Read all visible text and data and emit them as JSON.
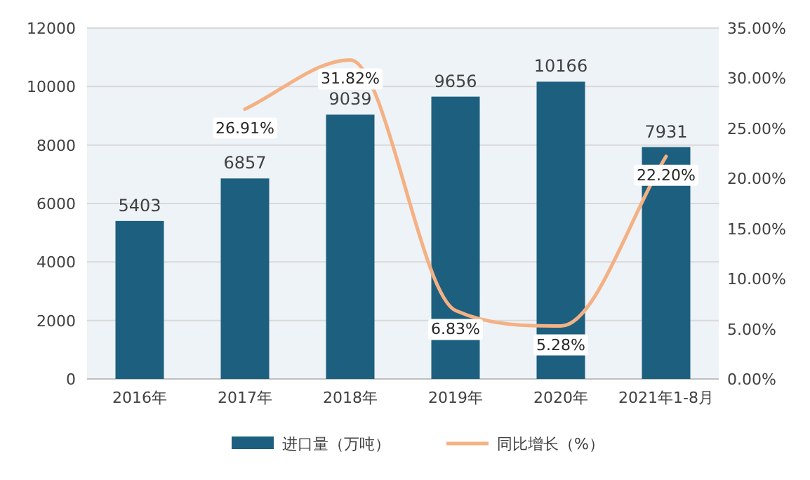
{
  "chart_data": {
    "type": "bar",
    "categories": [
      "2016年",
      "2017年",
      "2018年",
      "2019年",
      "2020年",
      "2021年1-8月"
    ],
    "series": [
      {
        "name": "进口量（万吨）",
        "color": "#1d5f7f",
        "values": [
          5403,
          6857,
          9039,
          9656,
          10166,
          7931
        ]
      },
      {
        "name": "同比增长（%）",
        "type": "line",
        "axis": "y2",
        "color": "#f4b183",
        "values": [
          null,
          26.91,
          31.82,
          6.83,
          5.28,
          22.2
        ],
        "value_labels": [
          null,
          "26.91%",
          "31.82%",
          "6.83%",
          "5.28%",
          "22.20%"
        ]
      }
    ],
    "ylim": [
      0,
      12000
    ],
    "yticks": [
      0,
      2000,
      4000,
      6000,
      8000,
      10000,
      12000
    ],
    "y2lim": [
      0,
      35
    ],
    "y2ticks": [
      {
        "value": 0,
        "label": "0.00%"
      },
      {
        "value": 5,
        "label": "5.00%"
      },
      {
        "value": 10,
        "label": "10.00%"
      },
      {
        "value": 15,
        "label": "15.00%"
      },
      {
        "value": 20,
        "label": "20.00%"
      },
      {
        "value": 25,
        "label": "25.00%"
      },
      {
        "value": 30,
        "label": "30.00%"
      },
      {
        "value": 35,
        "label": "35.00%"
      }
    ],
    "grid": "y",
    "legend": "bottom",
    "data_labels": true
  }
}
